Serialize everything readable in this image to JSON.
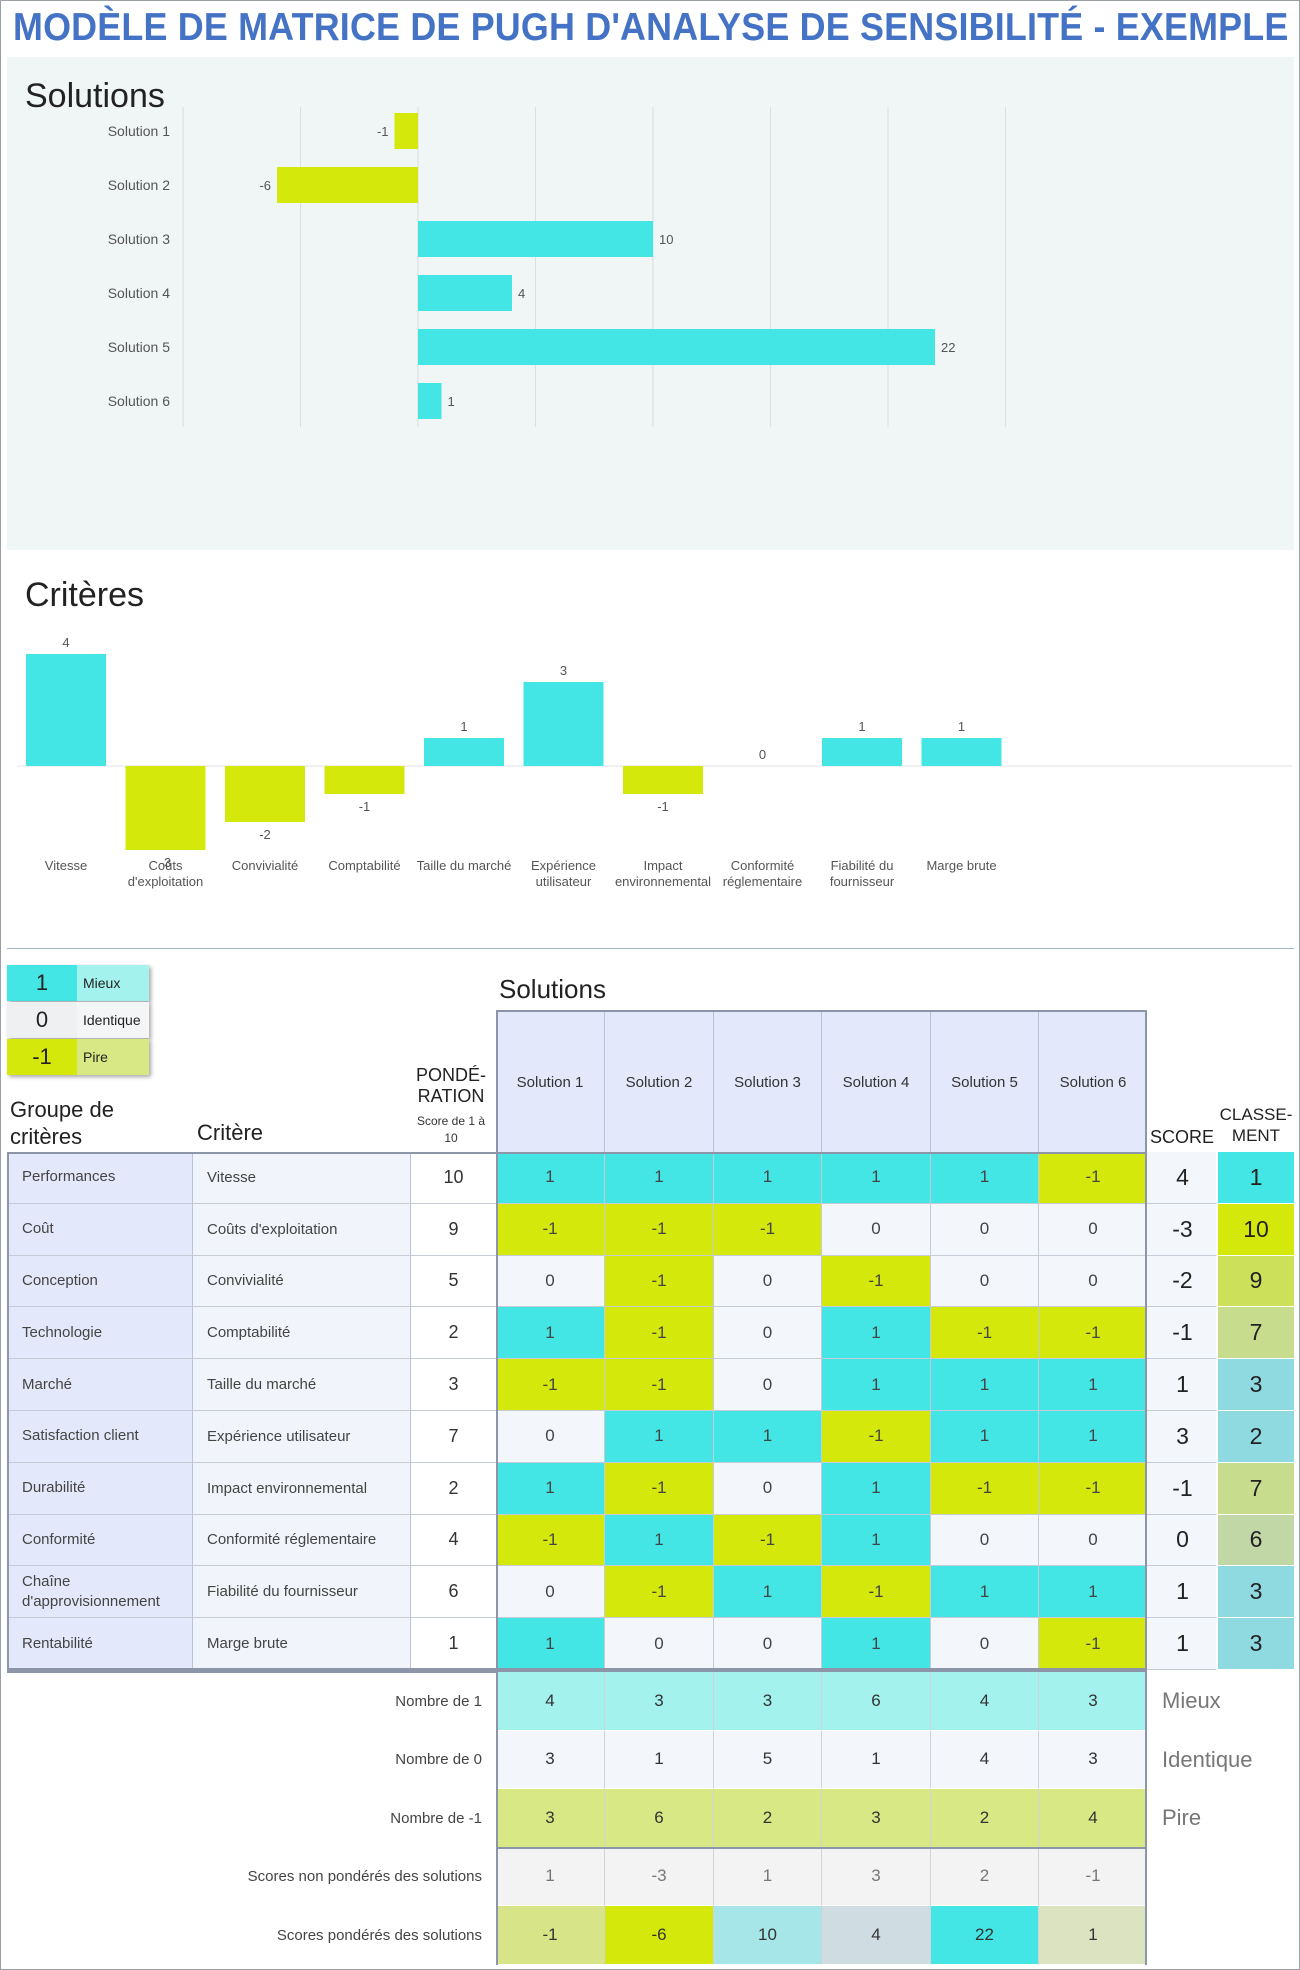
{
  "title": "MODÈLE DE MATRICE DE PUGH D'ANALYSE DE SENSIBILITÉ - EXEMPLE",
  "colors": {
    "better": "#44e5e5",
    "worse": "#d4e80c",
    "same": "#eef2f7"
  },
  "solutions_chart": {
    "title": "Solutions",
    "chart_data": {
      "type": "bar",
      "orientation": "horizontal",
      "categories": [
        "Solution 1",
        "Solution 2",
        "Solution 3",
        "Solution 4",
        "Solution 5",
        "Solution 6"
      ],
      "values": [
        -1,
        -6,
        10,
        4,
        22,
        1
      ],
      "xlim": [
        -10,
        25
      ]
    }
  },
  "criteria_chart": {
    "title": "Critères",
    "chart_data": {
      "type": "bar",
      "categories": [
        "Vitesse",
        "Coûts\nd'exploitation",
        "Convivialité",
        "Comptabilité",
        "Taille du marché",
        "Expérience\nutilisateur",
        "Impact\nenvironnemental",
        "Conformité\nréglementaire",
        "Fiabilité du\nfournisseur",
        "Marge brute"
      ],
      "values": [
        4,
        -3,
        -2,
        -1,
        1,
        3,
        -1,
        0,
        1,
        1
      ]
    }
  },
  "legend": [
    {
      "value": "1",
      "label": "Mieux"
    },
    {
      "value": "0",
      "label": "Identique"
    },
    {
      "value": "-1",
      "label": "Pire"
    }
  ],
  "matrix": {
    "solutions_title": "Solutions",
    "group_header": "Groupe de critères",
    "criterion_header": "Critère",
    "weight_header": "PONDÉ-RATION",
    "weight_sub": "Score de 1 à 10",
    "score_header": "SCORE",
    "rank_header": "CLASSE-MENT",
    "solutions": [
      "Solution 1",
      "Solution 2",
      "Solution 3",
      "Solution 4",
      "Solution 5",
      "Solution 6"
    ],
    "rows": [
      {
        "group": "Performances",
        "criterion": "Vitesse",
        "weight": "10",
        "values": [
          "1",
          "1",
          "1",
          "1",
          "1",
          "-1"
        ],
        "score": "4",
        "rank": "1"
      },
      {
        "group": "Coût",
        "criterion": "Coûts d'exploitation",
        "weight": "9",
        "values": [
          "-1",
          "-1",
          "-1",
          "0",
          "0",
          "0"
        ],
        "score": "-3",
        "rank": "10"
      },
      {
        "group": "Conception",
        "criterion": "Convivialité",
        "weight": "5",
        "values": [
          "0",
          "-1",
          "0",
          "-1",
          "0",
          "0"
        ],
        "score": "-2",
        "rank": "9"
      },
      {
        "group": "Technologie",
        "criterion": "Comptabilité",
        "weight": "2",
        "values": [
          "1",
          "-1",
          "0",
          "1",
          "-1",
          "-1"
        ],
        "score": "-1",
        "rank": "7"
      },
      {
        "group": "Marché",
        "criterion": "Taille du marché",
        "weight": "3",
        "values": [
          "-1",
          "-1",
          "0",
          "1",
          "1",
          "1"
        ],
        "score": "1",
        "rank": "3"
      },
      {
        "group": "Satisfaction client",
        "criterion": "Expérience utilisateur",
        "weight": "7",
        "values": [
          "0",
          "1",
          "1",
          "-1",
          "1",
          "1"
        ],
        "score": "3",
        "rank": "2"
      },
      {
        "group": "Durabilité",
        "criterion": "Impact environnemental",
        "weight": "2",
        "values": [
          "1",
          "-1",
          "0",
          "1",
          "-1",
          "-1"
        ],
        "score": "-1",
        "rank": "7"
      },
      {
        "group": "Conformité",
        "criterion": "Conformité réglementaire",
        "weight": "4",
        "values": [
          "-1",
          "1",
          "-1",
          "1",
          "0",
          "0"
        ],
        "score": "0",
        "rank": "6"
      },
      {
        "group": "Chaîne d'approvisionnement",
        "criterion": "Fiabilité du fournisseur",
        "weight": "6",
        "values": [
          "0",
          "-1",
          "1",
          "-1",
          "1",
          "1"
        ],
        "score": "1",
        "rank": "3"
      },
      {
        "group": "Rentabilité",
        "criterion": "Marge brute",
        "weight": "1",
        "values": [
          "1",
          "0",
          "0",
          "1",
          "0",
          "-1"
        ],
        "score": "1",
        "rank": "3"
      }
    ],
    "summary": [
      {
        "label": "Nombre de 1",
        "values": [
          "4",
          "3",
          "3",
          "6",
          "4",
          "3"
        ],
        "tag": "Mieux"
      },
      {
        "label": "Nombre de 0",
        "values": [
          "3",
          "1",
          "5",
          "1",
          "4",
          "3"
        ],
        "tag": "Identique"
      },
      {
        "label": "Nombre de -1",
        "values": [
          "3",
          "6",
          "2",
          "3",
          "2",
          "4"
        ],
        "tag": "Pire"
      },
      {
        "label": "Scores non pondérés des solutions",
        "values": [
          "1",
          "-3",
          "1",
          "3",
          "2",
          "-1"
        ],
        "tag": ""
      },
      {
        "label": "Scores pondérés des solutions",
        "values": [
          "-1",
          "-6",
          "10",
          "4",
          "22",
          "1"
        ],
        "tag": ""
      }
    ]
  }
}
